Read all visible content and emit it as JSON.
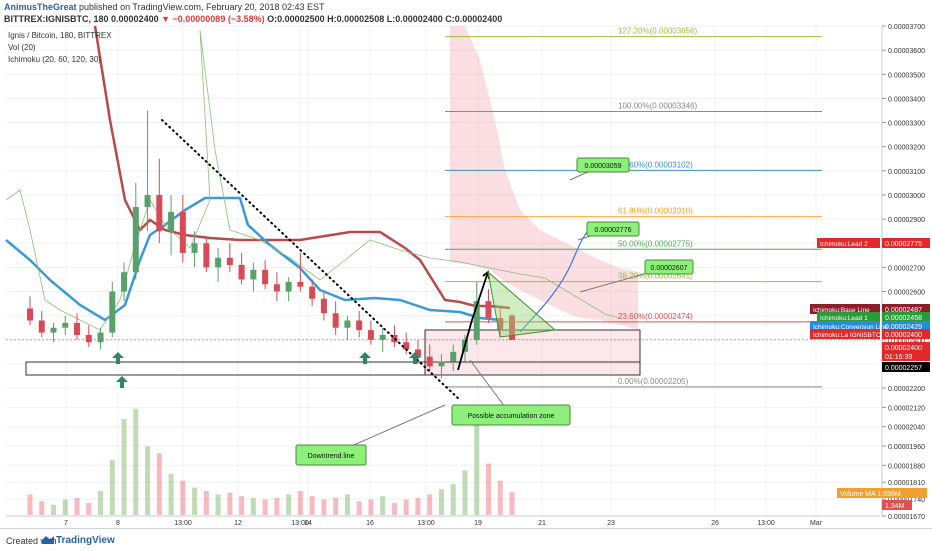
{
  "header": {
    "author": "AnimusTheGreat",
    "published": "published on TradingView.com, February 20, 2018 02:43 EST",
    "symbol_line": "BITTREX:IGNISBTC, 180",
    "last": "0.00002400",
    "change": "▼ −0.00000089 (−3.58%)",
    "ohlc": "O:0.00002500 H:0.00002508 L:0.00002400 C:0.00002400"
  },
  "legend": {
    "title": "Ignis / Bitcoin, 180, BITTREX",
    "vol": "Vol (20)",
    "ichimoku": "Ichimoku (20, 60, 120, 30)"
  },
  "footer": {
    "created_with": "Created with",
    "brand": "TradingView"
  },
  "chart_data": {
    "type": "candlestick",
    "symbol": "IGNISBTC",
    "exchange": "BITTREX",
    "timeframe": "180",
    "price_axis": {
      "min": 1.67e-05,
      "max": 3.7e-05,
      "ticks": [
        "0.00003700",
        "0.00003600",
        "0.00003500",
        "0.00003400",
        "0.00003300",
        "0.00003200",
        "0.00003100",
        "0.00003000",
        "0.00002900",
        "0.00002800",
        "0.00002700",
        "0.00002600",
        "0.00002500",
        "0.00002400",
        "0.00002300",
        "0.00002200",
        "0.00002120",
        "0.00002040",
        "0.00001960",
        "0.00001880",
        "0.00001810",
        "0.00001740",
        "0.00001670"
      ]
    },
    "time_axis": [
      "7",
      "8",
      "13:00",
      "12",
      "13:00",
      "14",
      "16",
      "13:00",
      "19",
      "21",
      "23",
      "26",
      "13:00",
      "Mar"
    ],
    "candles": [
      {
        "o": 2530,
        "h": 2580,
        "l": 2460,
        "c": 2480
      },
      {
        "o": 2480,
        "h": 2520,
        "l": 2410,
        "c": 2430
      },
      {
        "o": 2430,
        "h": 2470,
        "l": 2390,
        "c": 2450
      },
      {
        "o": 2450,
        "h": 2500,
        "l": 2420,
        "c": 2470
      },
      {
        "o": 2470,
        "h": 2510,
        "l": 2400,
        "c": 2420
      },
      {
        "o": 2420,
        "h": 2460,
        "l": 2370,
        "c": 2390
      },
      {
        "o": 2390,
        "h": 2450,
        "l": 2360,
        "c": 2430
      },
      {
        "o": 2430,
        "h": 2640,
        "l": 2410,
        "c": 2600
      },
      {
        "o": 2600,
        "h": 2720,
        "l": 2560,
        "c": 2680
      },
      {
        "o": 2680,
        "h": 3050,
        "l": 2650,
        "c": 2950
      },
      {
        "o": 2950,
        "h": 3350,
        "l": 2850,
        "c": 3000
      },
      {
        "o": 3000,
        "h": 3150,
        "l": 2800,
        "c": 2850
      },
      {
        "o": 2850,
        "h": 3000,
        "l": 2750,
        "c": 2930
      },
      {
        "o": 2930,
        "h": 3000,
        "l": 2720,
        "c": 2760
      },
      {
        "o": 2760,
        "h": 2850,
        "l": 2700,
        "c": 2800
      },
      {
        "o": 2800,
        "h": 2830,
        "l": 2680,
        "c": 2700
      },
      {
        "o": 2700,
        "h": 2780,
        "l": 2640,
        "c": 2740
      },
      {
        "o": 2740,
        "h": 2800,
        "l": 2680,
        "c": 2710
      },
      {
        "o": 2710,
        "h": 2760,
        "l": 2630,
        "c": 2650
      },
      {
        "o": 2650,
        "h": 2720,
        "l": 2600,
        "c": 2690
      },
      {
        "o": 2690,
        "h": 2730,
        "l": 2610,
        "c": 2630
      },
      {
        "o": 2630,
        "h": 2680,
        "l": 2560,
        "c": 2600
      },
      {
        "o": 2600,
        "h": 2660,
        "l": 2560,
        "c": 2640
      },
      {
        "o": 2640,
        "h": 2760,
        "l": 2600,
        "c": 2620
      },
      {
        "o": 2620,
        "h": 2650,
        "l": 2540,
        "c": 2570
      },
      {
        "o": 2570,
        "h": 2600,
        "l": 2480,
        "c": 2510
      },
      {
        "o": 2510,
        "h": 2560,
        "l": 2420,
        "c": 2450
      },
      {
        "o": 2450,
        "h": 2500,
        "l": 2400,
        "c": 2480
      },
      {
        "o": 2480,
        "h": 2520,
        "l": 2410,
        "c": 2440
      },
      {
        "o": 2440,
        "h": 2480,
        "l": 2380,
        "c": 2400
      },
      {
        "o": 2400,
        "h": 2450,
        "l": 2350,
        "c": 2420
      },
      {
        "o": 2420,
        "h": 2460,
        "l": 2370,
        "c": 2390
      },
      {
        "o": 2390,
        "h": 2430,
        "l": 2340,
        "c": 2360
      },
      {
        "o": 2360,
        "h": 2400,
        "l": 2300,
        "c": 2330
      },
      {
        "o": 2330,
        "h": 2380,
        "l": 2270,
        "c": 2290
      },
      {
        "o": 2290,
        "h": 2340,
        "l": 2240,
        "c": 2310
      },
      {
        "o": 2310,
        "h": 2380,
        "l": 2270,
        "c": 2350
      },
      {
        "o": 2350,
        "h": 2420,
        "l": 2310,
        "c": 2400
      },
      {
        "o": 2400,
        "h": 2640,
        "l": 2380,
        "c": 2560
      },
      {
        "o": 2560,
        "h": 2610,
        "l": 2470,
        "c": 2490
      },
      {
        "o": 2490,
        "h": 2530,
        "l": 2410,
        "c": 2440
      },
      {
        "o": 2500,
        "h": 2508,
        "l": 2400,
        "c": 2400
      }
    ],
    "fibonacci": [
      {
        "level": "127.20%",
        "price": "0.00003656",
        "color": "#9bbf3a"
      },
      {
        "level": "100.00%",
        "price": "0.00003346",
        "color": "#8a8a8a"
      },
      {
        "level": "78.60%",
        "price": "0.00003102",
        "color": "#3a90c8"
      },
      {
        "level": "61.80%",
        "price": "0.00002910",
        "color": "#f0a030"
      },
      {
        "level": "50.00%",
        "price": "0.00002775",
        "color": "#4caf50"
      },
      {
        "level": "38.20%",
        "price": "0.00002641",
        "color": "#9bbf3a"
      },
      {
        "level": "23.60%",
        "price": "0.00002474",
        "color": "#e05050"
      },
      {
        "level": "0.00%",
        "price": "0.00002205",
        "color": "#8a8a8a"
      }
    ],
    "price_labels": [
      {
        "text": "Ichimoku:Lead 2",
        "value": "0.00002775",
        "color": "#e02a2a"
      },
      {
        "text": "Ichimoku:Base Line",
        "value": "0.00002487",
        "color": "#8b1e2a"
      },
      {
        "text": "Ichimoku:Lead 1",
        "value": "0.00002458",
        "color": "#2a9a3a"
      },
      {
        "text": "Ichimoku:Conversion Line",
        "value": "0.00002429",
        "color": "#2a8ae0"
      },
      {
        "text": "Ichimoku:La IGNISBTC",
        "value": "0.00002400",
        "color": "#e02a2a"
      },
      {
        "text": "",
        "value": "0.00002400",
        "color": "#e02a2a"
      },
      {
        "text": "",
        "value": "01:16:39",
        "color": "#e02a2a"
      },
      {
        "text": "",
        "value": "0.00002257",
        "color": "#000000"
      }
    ],
    "volume_labels": [
      {
        "text": "Volume MA",
        "value": "1.656M",
        "color": "#f0a030"
      },
      {
        "text": "",
        "value": "1.34M",
        "color": "#e05050"
      }
    ],
    "callouts": [
      {
        "text": "0.00003059"
      },
      {
        "text": "0.00002776"
      },
      {
        "text": "0.00002607"
      },
      {
        "text": "Possible accumulation zone"
      },
      {
        "text": "Downtrend line"
      }
    ],
    "volumes": [
      1.2,
      0.8,
      0.6,
      0.9,
      1.0,
      0.7,
      1.4,
      3.2,
      5.6,
      6.2,
      4.0,
      3.6,
      2.4,
      2.0,
      1.6,
      1.4,
      1.2,
      1.3,
      1.1,
      1.0,
      0.9,
      1.0,
      1.2,
      1.4,
      1.1,
      0.9,
      1.0,
      1.2,
      0.8,
      0.9,
      1.1,
      0.7,
      0.9,
      1.0,
      1.2,
      1.5,
      1.8,
      2.6,
      6.4,
      3.0,
      2.0,
      1.34
    ],
    "grid": true
  }
}
